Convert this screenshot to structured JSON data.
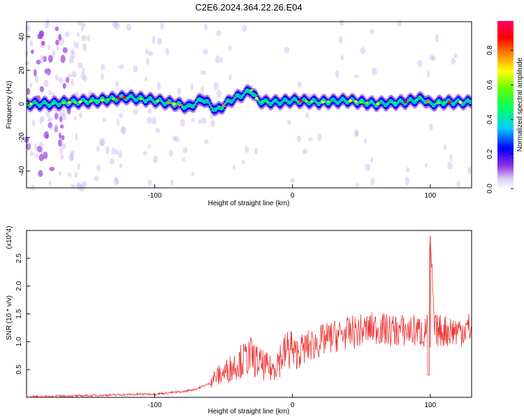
{
  "title": "C2E6.2024.364.22.26.E04",
  "chart_data": [
    {
      "type": "heatmap",
      "xlabel": "Height of straight line (km)",
      "ylabel": "Frequency (Hz)",
      "xlim": [
        -193,
        130
      ],
      "ylim": [
        -50,
        49
      ],
      "x_ticks": [
        -100,
        0,
        100
      ],
      "y_ticks": [
        -40,
        -20,
        0,
        20,
        40
      ],
      "colorbar": {
        "label": "Normalized spectral amplitude",
        "range": [
          0,
          0.97
        ],
        "ticks": [
          0.0,
          0.2,
          0.4,
          0.6,
          0.8
        ]
      },
      "ridge_center_hz": {
        "x": [
          -190,
          -175,
          -160,
          -140,
          -120,
          -100,
          -85,
          -75,
          -65,
          -55,
          -45,
          -35,
          -30,
          -25,
          -20,
          -10,
          0,
          20,
          40,
          60,
          80,
          95,
          100,
          110,
          130
        ],
        "y": [
          0,
          0,
          1,
          2,
          4,
          2,
          0,
          -2,
          3,
          -4,
          2,
          6,
          8,
          2,
          1,
          1,
          2,
          1,
          2,
          0,
          1,
          3,
          0,
          1,
          1
        ]
      }
    },
    {
      "type": "line",
      "xlabel": "Height of straight line (km)",
      "ylabel": "SNR (10 * v/v)",
      "y_multiplier": "(x10^4)",
      "xlim": [
        -193,
        130
      ],
      "ylim": [
        0,
        3.0
      ],
      "x_ticks": [
        -100,
        0,
        100
      ],
      "y_ticks": [
        0.5,
        1.0,
        1.5,
        2.0,
        2.5
      ],
      "series": [
        {
          "color": "#ee3333",
          "x": [
            -193,
            -150,
            -120,
            -100,
            -80,
            -70,
            -60,
            -50,
            -40,
            -35,
            -30,
            -25,
            -20,
            -15,
            -10,
            -5,
            0,
            10,
            20,
            30,
            40,
            50,
            60,
            70,
            80,
            90,
            97,
            100,
            103,
            110,
            120,
            130
          ],
          "y": [
            0.01,
            0.03,
            0.05,
            0.06,
            0.1,
            0.15,
            0.25,
            0.35,
            0.5,
            0.55,
            0.6,
            0.5,
            0.45,
            0.4,
            0.55,
            0.65,
            0.75,
            0.9,
            1.0,
            1.1,
            1.15,
            1.2,
            1.25,
            1.2,
            1.2,
            1.2,
            1.15,
            2.9,
            1.2,
            1.2,
            1.2,
            1.25
          ]
        }
      ]
    }
  ]
}
